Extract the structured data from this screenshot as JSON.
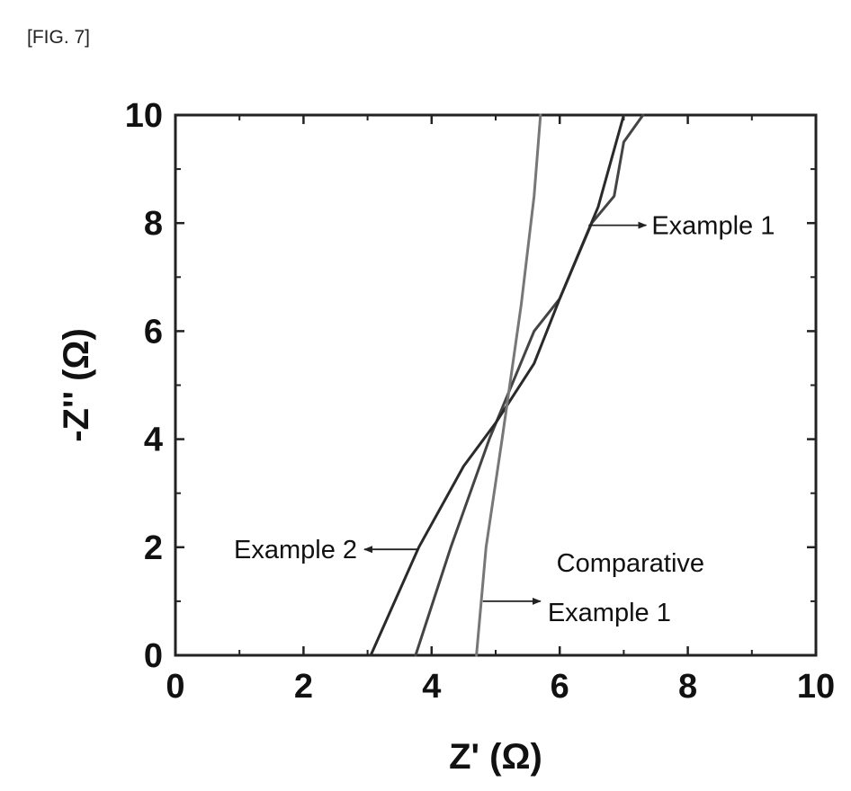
{
  "figure_label": "[FIG. 7]",
  "chart_data": {
    "type": "line",
    "xlabel": "Z' (Ω)",
    "ylabel": "-Z'' (Ω)",
    "xlim": [
      0,
      10
    ],
    "ylim": [
      0,
      10
    ],
    "x_ticks": [
      "0",
      "2",
      "4",
      "6",
      "8",
      "10"
    ],
    "y_ticks": [
      "0",
      "2",
      "4",
      "6",
      "8",
      "10"
    ],
    "grid": false,
    "series": [
      {
        "name": "Example 1",
        "color": "#444444",
        "x": [
          3.75,
          4.3,
          4.9,
          5.6,
          6.0,
          6.5,
          6.85,
          7.0,
          7.3
        ],
        "y": [
          0,
          2.0,
          4.0,
          6.0,
          6.6,
          8.0,
          8.5,
          9.5,
          10.0
        ]
      },
      {
        "name": "Example 2",
        "color": "#2a2a2a",
        "x": [
          3.05,
          3.8,
          4.5,
          5.0,
          5.6,
          6.0,
          6.6,
          7.0
        ],
        "y": [
          0,
          2.0,
          3.5,
          4.3,
          5.4,
          6.6,
          8.3,
          10.0
        ]
      },
      {
        "name": "Comparative Example 1",
        "color": "#777777",
        "x": [
          4.7,
          4.85,
          5.1,
          5.4,
          5.6,
          5.7
        ],
        "y": [
          0,
          2.0,
          4.0,
          6.5,
          8.5,
          10.0
        ]
      }
    ],
    "annotations": [
      {
        "lines": [
          "Example 1"
        ],
        "arrow_from": [
          6.45,
          7.96
        ],
        "arrow_to": [
          7.35,
          7.96
        ]
      },
      {
        "lines": [
          "Example 2"
        ],
        "arrow_from": [
          3.8,
          1.96
        ],
        "arrow_to": [
          2.95,
          1.96
        ]
      },
      {
        "lines": [
          "Comparative",
          "Example 1"
        ],
        "arrow_from": [
          4.8,
          1.0
        ],
        "arrow_to": [
          5.7,
          1.0
        ]
      }
    ]
  }
}
